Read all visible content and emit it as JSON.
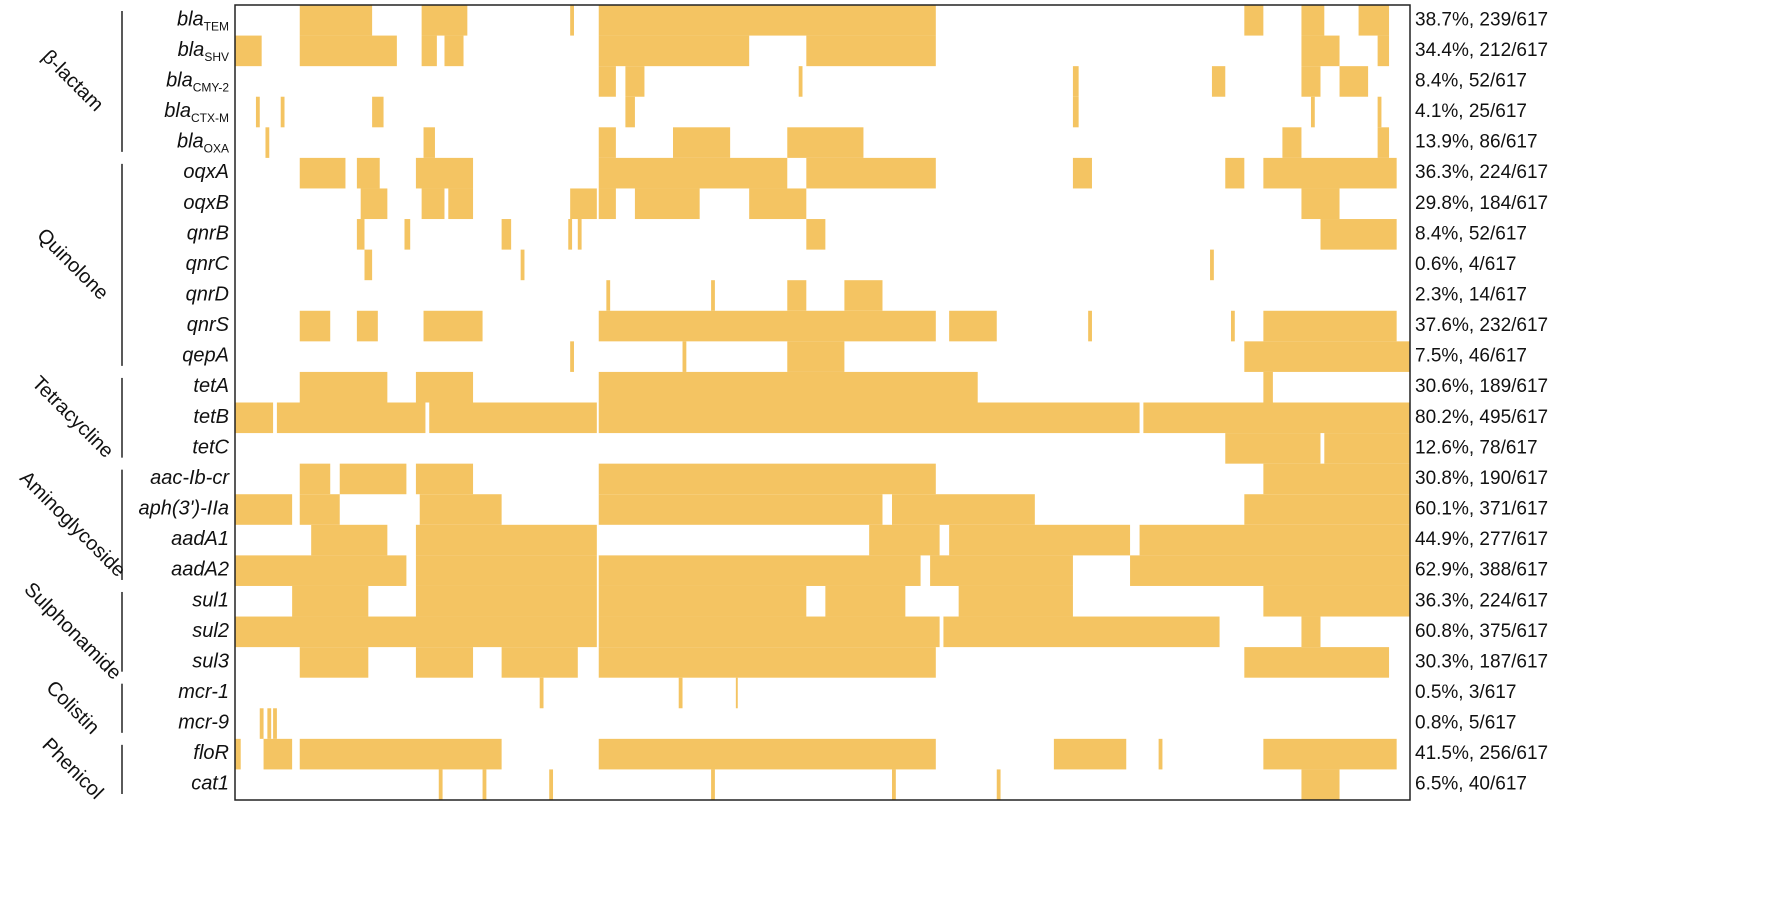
{
  "chart_data": {
    "type": "heatmap",
    "color": "#f4c462",
    "xlim": [
      0,
      617
    ],
    "groups": [
      {
        "name": "β-lactam",
        "rows": [
          0,
          4
        ]
      },
      {
        "name": "Quinolone",
        "rows": [
          5,
          11
        ]
      },
      {
        "name": "Tetracycline",
        "rows": [
          12,
          14
        ]
      },
      {
        "name": "Aminoglycoside",
        "rows": [
          15,
          18
        ]
      },
      {
        "name": "Sulphonamide",
        "rows": [
          19,
          21
        ]
      },
      {
        "name": "Colistin",
        "rows": [
          22,
          23
        ]
      },
      {
        "name": "Phenicol",
        "rows": [
          24,
          25
        ]
      }
    ],
    "rows": [
      {
        "gene": "bla",
        "sub": "TEM",
        "label": "38.7%, 239/617",
        "segments": [
          [
            34,
            72
          ],
          [
            98,
            122
          ],
          [
            176,
            178
          ],
          [
            191,
            368
          ],
          [
            530,
            540
          ],
          [
            560,
            572
          ],
          [
            590,
            606
          ]
        ]
      },
      {
        "gene": "bla",
        "sub": "SHV",
        "label": "34.4%, 212/617",
        "segments": [
          [
            0,
            14
          ],
          [
            34,
            85
          ],
          [
            98,
            106
          ],
          [
            110,
            120
          ],
          [
            191,
            270
          ],
          [
            300,
            368
          ],
          [
            560,
            580
          ],
          [
            600,
            606
          ]
        ]
      },
      {
        "gene": "bla",
        "sub": "CMY-2",
        "label": "8.4%, 52/617",
        "segments": [
          [
            191,
            200
          ],
          [
            205,
            215
          ],
          [
            296,
            298
          ],
          [
            440,
            443
          ],
          [
            513,
            520
          ],
          [
            560,
            570
          ],
          [
            580,
            595
          ]
        ]
      },
      {
        "gene": "bla",
        "sub": "CTX-M",
        "label": "4.1%, 25/617",
        "segments": [
          [
            11,
            13
          ],
          [
            24,
            26
          ],
          [
            72,
            78
          ],
          [
            205,
            210
          ],
          [
            440,
            443
          ],
          [
            565,
            567
          ],
          [
            600,
            602
          ]
        ]
      },
      {
        "gene": "bla",
        "sub": "OXA",
        "label": "13.9%, 86/617",
        "segments": [
          [
            16,
            18
          ],
          [
            99,
            105
          ],
          [
            191,
            200
          ],
          [
            230,
            260
          ],
          [
            290,
            330
          ],
          [
            550,
            560
          ],
          [
            600,
            606
          ]
        ]
      },
      {
        "gene": "oqxA",
        "label": "36.3%, 224/617",
        "segments": [
          [
            34,
            58
          ],
          [
            64,
            76
          ],
          [
            95,
            125
          ],
          [
            191,
            290
          ],
          [
            300,
            368
          ],
          [
            440,
            450
          ],
          [
            520,
            530
          ],
          [
            540,
            610
          ]
        ]
      },
      {
        "gene": "oqxB",
        "label": "29.8%, 184/617",
        "segments": [
          [
            66,
            80
          ],
          [
            98,
            110
          ],
          [
            112,
            125
          ],
          [
            176,
            190
          ],
          [
            191,
            200
          ],
          [
            210,
            244
          ],
          [
            270,
            300
          ],
          [
            560,
            580
          ]
        ]
      },
      {
        "gene": "qnrB",
        "label": "8.4%, 52/617",
        "segments": [
          [
            64,
            68
          ],
          [
            89,
            92
          ],
          [
            140,
            145
          ],
          [
            175,
            177
          ],
          [
            180,
            182
          ],
          [
            300,
            310
          ],
          [
            570,
            610
          ]
        ]
      },
      {
        "gene": "qnrC",
        "label": "0.6%, 4/617",
        "segments": [
          [
            68,
            72
          ],
          [
            150,
            152
          ],
          [
            512,
            514
          ]
        ]
      },
      {
        "gene": "qnrD",
        "label": "2.3%, 14/617",
        "segments": [
          [
            195,
            197
          ],
          [
            250,
            252
          ],
          [
            290,
            300
          ],
          [
            320,
            340
          ]
        ]
      },
      {
        "gene": "qnrS",
        "label": "37.6%, 232/617",
        "segments": [
          [
            34,
            50
          ],
          [
            64,
            75
          ],
          [
            99,
            130
          ],
          [
            191,
            368
          ],
          [
            375,
            400
          ],
          [
            448,
            450
          ],
          [
            523,
            525
          ],
          [
            540,
            610
          ]
        ]
      },
      {
        "gene": "qepA",
        "label": "7.5%, 46/617",
        "segments": [
          [
            176,
            178
          ],
          [
            235,
            237
          ],
          [
            290,
            320
          ],
          [
            530,
            617
          ]
        ]
      },
      {
        "gene": "tetA",
        "label": "30.6%, 189/617",
        "segments": [
          [
            34,
            80
          ],
          [
            95,
            125
          ],
          [
            191,
            390
          ],
          [
            540,
            545
          ]
        ]
      },
      {
        "gene": "tetB",
        "label": "80.2%, 495/617",
        "segments": [
          [
            0,
            20
          ],
          [
            22,
            100
          ],
          [
            102,
            190
          ],
          [
            191,
            475
          ],
          [
            477,
            617
          ]
        ]
      },
      {
        "gene": "tetC",
        "label": "12.6%, 78/617",
        "segments": [
          [
            520,
            570
          ],
          [
            572,
            617
          ]
        ]
      },
      {
        "gene": "aac-Ib-cr",
        "label": "30.8%, 190/617",
        "segments": [
          [
            34,
            50
          ],
          [
            55,
            90
          ],
          [
            95,
            125
          ],
          [
            191,
            368
          ],
          [
            540,
            617
          ]
        ]
      },
      {
        "gene": "aph(3')-IIa",
        "label": "60.1%, 371/617",
        "segments": [
          [
            0,
            30
          ],
          [
            34,
            55
          ],
          [
            97,
            140
          ],
          [
            191,
            340
          ],
          [
            345,
            420
          ],
          [
            530,
            617
          ]
        ]
      },
      {
        "gene": "aadA1",
        "label": "44.9%, 277/617",
        "segments": [
          [
            40,
            80
          ],
          [
            95,
            190
          ],
          [
            333,
            370
          ],
          [
            375,
            470
          ],
          [
            475,
            617
          ]
        ]
      },
      {
        "gene": "aadA2",
        "label": "62.9%, 388/617",
        "segments": [
          [
            0,
            90
          ],
          [
            95,
            190
          ],
          [
            191,
            360
          ],
          [
            365,
            440
          ],
          [
            470,
            617
          ]
        ]
      },
      {
        "gene": "sul1",
        "label": "36.3%, 224/617",
        "segments": [
          [
            30,
            70
          ],
          [
            95,
            190
          ],
          [
            191,
            300
          ],
          [
            310,
            352
          ],
          [
            380,
            440
          ],
          [
            540,
            617
          ]
        ]
      },
      {
        "gene": "sul2",
        "label": "60.8%, 375/617",
        "segments": [
          [
            0,
            190
          ],
          [
            191,
            370
          ],
          [
            372,
            517
          ],
          [
            560,
            570
          ]
        ]
      },
      {
        "gene": "sul3",
        "label": "30.3%, 187/617",
        "segments": [
          [
            34,
            70
          ],
          [
            95,
            125
          ],
          [
            140,
            180
          ],
          [
            191,
            368
          ],
          [
            530,
            606
          ]
        ]
      },
      {
        "gene": "mcr-1",
        "label": "0.5%, 3/617",
        "segments": [
          [
            160,
            162
          ],
          [
            233,
            235
          ],
          [
            263,
            264
          ]
        ]
      },
      {
        "gene": "mcr-9",
        "label": "0.8%, 5/617",
        "segments": [
          [
            13,
            15
          ],
          [
            17,
            19
          ],
          [
            20,
            22
          ]
        ]
      },
      {
        "gene": "floR",
        "label": "41.5%, 256/617",
        "segments": [
          [
            0,
            3
          ],
          [
            15,
            30
          ],
          [
            34,
            140
          ],
          [
            191,
            368
          ],
          [
            430,
            468
          ],
          [
            485,
            487
          ],
          [
            540,
            610
          ]
        ]
      },
      {
        "gene": "cat1",
        "label": "6.5%, 40/617",
        "segments": [
          [
            107,
            109
          ],
          [
            130,
            132
          ],
          [
            165,
            167
          ],
          [
            250,
            252
          ],
          [
            345,
            347
          ],
          [
            400,
            402
          ],
          [
            560,
            580
          ]
        ]
      }
    ]
  }
}
